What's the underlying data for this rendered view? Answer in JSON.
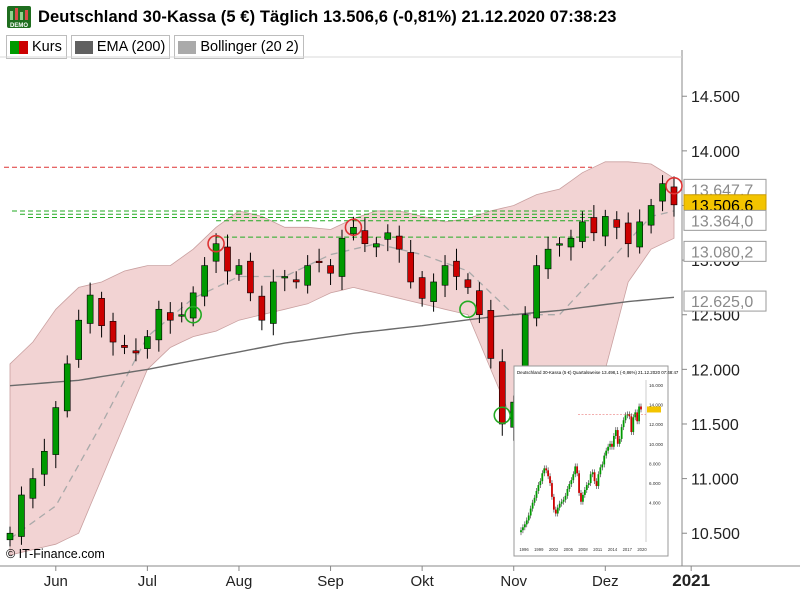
{
  "header": {
    "logo_icon": "demo-badge-icon",
    "logo_text": "DEMO",
    "title": "Deutschland 30-Kassa (5 €) Täglich 13.506,6 (-0,81%) 21.12.2020 07:38:23"
  },
  "legend": [
    {
      "label": "Kurs",
      "colors": [
        "#009900",
        "#cc0000"
      ]
    },
    {
      "label": "EMA (200)",
      "colors": [
        "#606060"
      ]
    },
    {
      "label": "Bollinger (20 2)",
      "colors": [
        "#aaaaaa"
      ]
    }
  ],
  "copyright": "© IT-Finance.com",
  "colors": {
    "up": "#009900",
    "down": "#cc0000",
    "band_fill": "#f2d3d3",
    "band_edge": "#c9a0a0",
    "ema": "#6a6a6a",
    "mid": "#a9a9a9",
    "resistance": "#dd3333",
    "support": "#22aa22",
    "current_price_bg": "#f3c400"
  },
  "chart_data": {
    "type": "candlestick",
    "x_tick_labels": [
      "Jun",
      "Jul",
      "Aug",
      "Sep",
      "Okt",
      "Nov",
      "Dez",
      "2021"
    ],
    "y_tick_labels": [
      "14.500",
      "14.000",
      "13.500",
      "13.000",
      "12.500",
      "12.000",
      "11.500",
      "11.000",
      "10.500"
    ],
    "ylim": [
      10200,
      14850
    ],
    "price_labels": [
      {
        "text": "13.647,7",
        "value": 13647.7,
        "style": "boxed"
      },
      {
        "text": "13.506,6",
        "value": 13506.6,
        "style": "current"
      },
      {
        "text": "13.364,0",
        "value": 13364.0,
        "style": "boxed"
      },
      {
        "text": "13.080,2",
        "value": 13080.2,
        "style": "boxed"
      },
      {
        "text": "12.625,0",
        "value": 12625.0,
        "style": "boxed"
      }
    ],
    "last": {
      "value": 13506.6,
      "change_pct": -0.81,
      "date": "21.12.2020 07:38:23"
    },
    "series": [
      {
        "kind": "close",
        "points": [
          [
            0,
            10500
          ],
          [
            1,
            10850
          ],
          [
            2,
            11000
          ],
          [
            3,
            11250
          ],
          [
            4,
            11650
          ],
          [
            5,
            12050
          ],
          [
            6,
            12450
          ],
          [
            7,
            12680
          ],
          [
            8,
            12400
          ],
          [
            9,
            12250
          ],
          [
            10,
            12200
          ],
          [
            11,
            12150
          ],
          [
            12,
            12300
          ],
          [
            13,
            12550
          ],
          [
            14,
            12450
          ],
          [
            15,
            12500
          ],
          [
            16,
            12700
          ],
          [
            17,
            12950
          ],
          [
            18,
            13150
          ],
          [
            19,
            12900
          ],
          [
            20,
            12950
          ],
          [
            21,
            12700
          ],
          [
            22,
            12450
          ],
          [
            23,
            12800
          ],
          [
            24,
            12850
          ],
          [
            25,
            12800
          ],
          [
            26,
            12950
          ],
          [
            27,
            12980
          ],
          [
            28,
            12880
          ],
          [
            29,
            13200
          ],
          [
            30,
            13300
          ],
          [
            31,
            13150
          ],
          [
            32,
            13150
          ],
          [
            33,
            13250
          ],
          [
            34,
            13100
          ],
          [
            35,
            12800
          ],
          [
            36,
            12650
          ],
          [
            37,
            12800
          ],
          [
            38,
            12950
          ],
          [
            39,
            12850
          ],
          [
            40,
            12750
          ],
          [
            41,
            12500
          ],
          [
            42,
            12100
          ],
          [
            43,
            11500
          ],
          [
            44,
            11700
          ],
          [
            45,
            12500
          ],
          [
            46,
            12950
          ],
          [
            47,
            13100
          ],
          [
            48,
            13150
          ],
          [
            49,
            13200
          ],
          [
            50,
            13350
          ],
          [
            51,
            13250
          ],
          [
            52,
            13400
          ],
          [
            53,
            13300
          ],
          [
            54,
            13150
          ],
          [
            55,
            13350
          ],
          [
            56,
            13500
          ],
          [
            57,
            13700
          ],
          [
            58,
            13506
          ]
        ]
      },
      {
        "kind": "bollinger_upper",
        "points": [
          [
            0,
            12050
          ],
          [
            2,
            12250
          ],
          [
            4,
            12550
          ],
          [
            6,
            12750
          ],
          [
            8,
            12800
          ],
          [
            10,
            12900
          ],
          [
            12,
            12950
          ],
          [
            14,
            12950
          ],
          [
            16,
            13100
          ],
          [
            18,
            13300
          ],
          [
            20,
            13450
          ],
          [
            22,
            13400
          ],
          [
            24,
            13300
          ],
          [
            26,
            13300
          ],
          [
            28,
            13280
          ],
          [
            30,
            13380
          ],
          [
            32,
            13450
          ],
          [
            34,
            13450
          ],
          [
            36,
            13400
          ],
          [
            38,
            13350
          ],
          [
            40,
            13380
          ],
          [
            42,
            13450
          ],
          [
            44,
            13500
          ],
          [
            46,
            13600
          ],
          [
            48,
            13650
          ],
          [
            50,
            13800
          ],
          [
            52,
            13900
          ],
          [
            54,
            13900
          ],
          [
            56,
            13880
          ],
          [
            58,
            13750
          ]
        ]
      },
      {
        "kind": "bollinger_lower",
        "points": [
          [
            0,
            10300
          ],
          [
            2,
            10350
          ],
          [
            4,
            10400
          ],
          [
            6,
            10500
          ],
          [
            8,
            11000
          ],
          [
            10,
            11500
          ],
          [
            12,
            12000
          ],
          [
            14,
            12200
          ],
          [
            16,
            12300
          ],
          [
            18,
            12350
          ],
          [
            20,
            12450
          ],
          [
            22,
            12500
          ],
          [
            24,
            12550
          ],
          [
            26,
            12600
          ],
          [
            28,
            12700
          ],
          [
            30,
            12750
          ],
          [
            32,
            12700
          ],
          [
            34,
            12650
          ],
          [
            36,
            12600
          ],
          [
            38,
            12550
          ],
          [
            40,
            12500
          ],
          [
            42,
            12000
          ],
          [
            44,
            11500
          ],
          [
            46,
            11400
          ],
          [
            48,
            11450
          ],
          [
            50,
            11600
          ],
          [
            52,
            12000
          ],
          [
            54,
            12800
          ],
          [
            56,
            13100
          ],
          [
            58,
            13200
          ]
        ]
      },
      {
        "kind": "bollinger_middle",
        "points": [
          [
            0,
            10450
          ],
          [
            4,
            10750
          ],
          [
            8,
            11500
          ],
          [
            12,
            12300
          ],
          [
            16,
            12650
          ],
          [
            20,
            12850
          ],
          [
            24,
            12850
          ],
          [
            28,
            13050
          ],
          [
            32,
            13150
          ],
          [
            36,
            13050
          ],
          [
            40,
            12900
          ],
          [
            44,
            12500
          ],
          [
            48,
            12500
          ],
          [
            52,
            12950
          ],
          [
            56,
            13400
          ],
          [
            58,
            13450
          ]
        ]
      },
      {
        "kind": "ema200",
        "points": [
          [
            0,
            11850
          ],
          [
            6,
            11900
          ],
          [
            12,
            12000
          ],
          [
            18,
            12120
          ],
          [
            24,
            12240
          ],
          [
            30,
            12330
          ],
          [
            36,
            12400
          ],
          [
            42,
            12480
          ],
          [
            48,
            12540
          ],
          [
            54,
            12620
          ],
          [
            58,
            12660
          ]
        ]
      }
    ],
    "levels": [
      {
        "value": 13850,
        "color": "resistance"
      },
      {
        "value": 13450,
        "color": "support"
      },
      {
        "value": 13420,
        "color": "support"
      },
      {
        "value": 13390,
        "color": "support"
      },
      {
        "value": 13360,
        "color": "support"
      },
      {
        "value": 13210,
        "color": "support"
      }
    ],
    "markers": [
      {
        "i": 18,
        "value": 13150,
        "color": "resistance"
      },
      {
        "i": 30,
        "value": 13300,
        "color": "resistance"
      },
      {
        "i": 58,
        "value": 13680,
        "color": "resistance"
      },
      {
        "i": 16,
        "value": 12500,
        "color": "support"
      },
      {
        "i": 40,
        "value": 12550,
        "color": "support"
      },
      {
        "i": 43,
        "value": 11580,
        "color": "support"
      }
    ],
    "inset": {
      "title": "Deutschland 30-Kassa (5 €) Quartalsweise 13.498,1 (-0,86%) 21.12.2020 07:48:47",
      "y_tick_labels": [
        "16.000",
        "14.000",
        "12.000",
        "10.000",
        "8.000",
        "6.000",
        "4.000"
      ],
      "x_tick_labels": [
        "1996",
        "1999",
        "2002",
        "2005",
        "2008",
        "2011",
        "2014",
        "2017",
        "2020"
      ],
      "ylim": [
        0,
        16500
      ],
      "closes": [
        1200,
        1500,
        1800,
        2200,
        2700,
        3400,
        4000,
        4500,
        5200,
        5800,
        6200,
        7000,
        7500,
        7300,
        6700,
        6000,
        4600,
        3300,
        2900,
        3500,
        3900,
        4100,
        4300,
        4700,
        5400,
        5900,
        6300,
        6900,
        7700,
        7000,
        5000,
        4100,
        4800,
        5300,
        5800,
        6000,
        6900,
        7100,
        6200,
        5700,
        6900,
        7600,
        7900,
        8800,
        9300,
        9700,
        10000,
        9700,
        10800,
        11400,
        10000,
        10500,
        11700,
        12400,
        12900,
        13000,
        12800,
        11200,
        12700,
        13200,
        12300,
        13800,
        13500
      ]
    }
  }
}
